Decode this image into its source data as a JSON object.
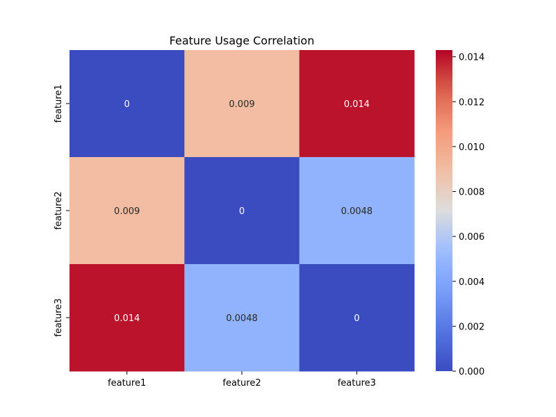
{
  "chart_data": {
    "type": "heatmap",
    "title": "Feature Usage Correlation",
    "xlabel": "",
    "ylabel": "",
    "x_categories": [
      "feature1",
      "feature2",
      "feature3"
    ],
    "y_categories": [
      "feature1",
      "feature2",
      "feature3"
    ],
    "values": [
      [
        0,
        0.009,
        0.014
      ],
      [
        0.009,
        0,
        0.0048
      ],
      [
        0.014,
        0.0048,
        0
      ]
    ],
    "cell_labels": [
      [
        "0",
        "0.009",
        "0.014"
      ],
      [
        "0.009",
        "0",
        "0.0048"
      ],
      [
        "0.014",
        "0.0048",
        "0"
      ]
    ],
    "colormap": "coolwarm",
    "vmin": 0,
    "vmax": 0.0143,
    "colorbar": {
      "ticks": [
        0.0,
        0.002,
        0.004,
        0.006,
        0.008,
        0.01,
        0.012,
        0.014
      ],
      "tick_labels": [
        "0.000",
        "0.002",
        "0.004",
        "0.006",
        "0.008",
        "0.010",
        "0.012",
        "0.014"
      ]
    },
    "grid": false,
    "legend": "colorbar-right"
  }
}
